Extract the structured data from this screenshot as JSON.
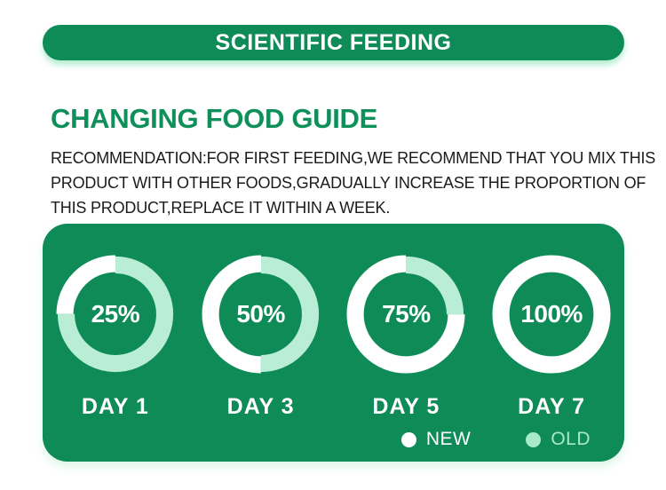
{
  "banner": {
    "title": "SCIENTIFIC FEEDING"
  },
  "heading": "CHANGING FOOD GUIDE",
  "recommendation": {
    "lines": [
      "RECOMMENDATION:FOR FIRST FEEDING,WE RECOMMEND THAT YOU MIX THIS",
      "PRODUCT WITH OTHER FOODS,GRADUALLY INCREASE THE PROPORTION OF",
      "THIS PRODUCT,REPLACE IT WITHIN A WEEK."
    ]
  },
  "chart_data": [
    {
      "type": "pie",
      "variant": "donut",
      "title": "DAY 1",
      "center_label": "25%",
      "slices": [
        {
          "label": "NEW",
          "value": 25,
          "color": "#ffffff"
        },
        {
          "label": "OLD",
          "value": 75,
          "color": "#b9edd6"
        }
      ]
    },
    {
      "type": "pie",
      "variant": "donut",
      "title": "DAY 3",
      "center_label": "50%",
      "slices": [
        {
          "label": "NEW",
          "value": 50,
          "color": "#ffffff"
        },
        {
          "label": "OLD",
          "value": 50,
          "color": "#b9edd6"
        }
      ]
    },
    {
      "type": "pie",
      "variant": "donut",
      "title": "DAY 5",
      "center_label": "75%",
      "slices": [
        {
          "label": "NEW",
          "value": 75,
          "color": "#ffffff"
        },
        {
          "label": "OLD",
          "value": 25,
          "color": "#b9edd6"
        }
      ]
    },
    {
      "type": "pie",
      "variant": "donut",
      "title": "DAY 7",
      "center_label": "100%",
      "slices": [
        {
          "label": "NEW",
          "value": 100,
          "color": "#ffffff"
        },
        {
          "label": "OLD",
          "value": 0,
          "color": "#b9edd6"
        }
      ]
    }
  ],
  "legend": {
    "items": [
      {
        "label": "NEW",
        "color": "#ffffff"
      },
      {
        "label": "OLD",
        "color": "#a8e8cb"
      }
    ]
  },
  "colors": {
    "green": "#0e8b57",
    "mint": "#b9edd6",
    "text": "#1b1b1b"
  }
}
